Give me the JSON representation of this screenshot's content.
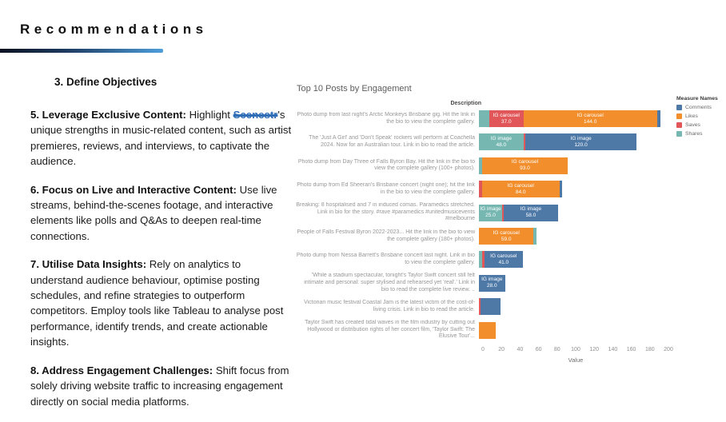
{
  "slide": {
    "title": "Recommendations"
  },
  "left_panel": {
    "heading": "3. Define Objectives",
    "paragraphs": [
      {
        "lead": "5. Leverage Exclusive Content:",
        "before_redacted": " Highlight ",
        "redacted": "Scenestr",
        "after_redacted": "'s unique strengths in music-related content, such as artist premieres, reviews, and interviews, to captivate the audience."
      },
      {
        "lead": "6. Focus on Live and Interactive Content:",
        "text": " Use live streams, behind-the-scenes footage, and interactive elements like polls and Q&As to deepen real-time connections."
      },
      {
        "lead": "7. Utilise Data Insights:",
        "text": " Rely on analytics to understand audience behaviour, optimise posting schedules, and refine strategies to outperform competitors. Employ tools like Tableau to analyse post performance, identify trends, and create actionable insights."
      },
      {
        "lead": "8. Address Engagement Challenges:",
        "text": " Shift focus from solely driving website traffic to increasing engagement directly on social media platforms."
      }
    ]
  },
  "chart_data": {
    "type": "bar",
    "orientation": "horizontal",
    "title": "Top 10 Posts by Engagement",
    "column_header": "Description",
    "xlabel": "Value",
    "x_ticks": [
      0,
      20,
      40,
      60,
      80,
      100,
      120,
      140,
      160,
      180,
      200
    ],
    "xlim": [
      0,
      210
    ],
    "grid": false,
    "legend": {
      "title": "Measure Names",
      "position": "top-right",
      "entries": [
        {
          "label": "Comments",
          "color": "#4e79a7"
        },
        {
          "label": "Likes",
          "color": "#f28e2b"
        },
        {
          "label": "Saves",
          "color": "#e15759"
        },
        {
          "label": "Shares",
          "color": "#76b7b2"
        }
      ]
    },
    "rows": [
      {
        "description": "Photo dump from last night's Arctic Monkeys Brisbane gig. Hit the link in the bio to view the complete gallery.",
        "segments": [
          {
            "measure": "Shares",
            "value": 11
          },
          {
            "measure": "Saves",
            "value": 37,
            "label": "IG carousel",
            "value_label": "37.0"
          },
          {
            "measure": "Likes",
            "value": 144,
            "label": "IG carousel",
            "value_label": "144.0"
          },
          {
            "measure": "Comments",
            "value": 4
          }
        ]
      },
      {
        "description": "The 'Just A Girl' and 'Don't Speak' rockers will perform at Coachella 2024. Now for an Australian tour. Link in bio to read the article.",
        "segments": [
          {
            "measure": "Shares",
            "value": 48,
            "label": "IG image",
            "value_label": "48.0"
          },
          {
            "measure": "Saves",
            "value": 2
          },
          {
            "measure": "Comments",
            "value": 120,
            "label": "IG image",
            "value_label": "120.0"
          }
        ]
      },
      {
        "description": "Photo dump from Day Three of Falls Byron Bay. Hit the link in the bio to view the complete gallery (100+ photos).",
        "segments": [
          {
            "measure": "Shares",
            "value": 3
          },
          {
            "measure": "Likes",
            "value": 93,
            "label": "IG carousel",
            "value_label": "93.0"
          }
        ]
      },
      {
        "description": "Photo dump from Ed Sheeran's Brisbane concert (night one); hit the link in the bio to view the complete gallery.",
        "segments": [
          {
            "measure": "Saves",
            "value": 3
          },
          {
            "measure": "Likes",
            "value": 84,
            "label": "IG carousel",
            "value_label": "84.0"
          },
          {
            "measure": "Comments",
            "value": 3
          }
        ]
      },
      {
        "description": "Breaking: 8 hospitalised and 7 in induced comas. Paramedics stretched. Link in bio for the story. #rave #paramedics #unitedmusicevents #melbourne",
        "segments": [
          {
            "measure": "Shares",
            "value": 25,
            "label": "IG image",
            "value_label": "25.0"
          },
          {
            "measure": "Saves",
            "value": 2
          },
          {
            "measure": "Comments",
            "value": 58,
            "label": "IG image",
            "value_label": "58.0"
          }
        ]
      },
      {
        "description": "People of Falls Festival Byron 2022-2023... Hit the link in the bio to view the complete gallery (180+ photos).",
        "segments": [
          {
            "measure": "Likes",
            "value": 59,
            "label": "IG carousel",
            "value_label": "59.0"
          },
          {
            "measure": "Shares",
            "value": 3
          }
        ]
      },
      {
        "description": "Photo dump from Nessa Barrett's Brisbane concert last night. Link in bio to view the complete gallery.",
        "segments": [
          {
            "measure": "Shares",
            "value": 3
          },
          {
            "measure": "Saves",
            "value": 3
          },
          {
            "measure": "Comments",
            "value": 41,
            "label": "IG carousel",
            "value_label": "41.0"
          }
        ]
      },
      {
        "description": "'While a stadium spectacular, tonight's Taylor Swift concert still felt intimate and personal: super stylised and rehearsed yet 'real'.' Link in bio to read the complete live review. ..",
        "segments": [
          {
            "measure": "Comments",
            "value": 28,
            "label": "IG image",
            "value_label": "28.0"
          }
        ]
      },
      {
        "description": "Victorian music festival Coastal Jam is the latest victim of the cost-of-living crisis. Link in bio to read the article.",
        "segments": [
          {
            "measure": "Saves",
            "value": 2
          },
          {
            "measure": "Comments",
            "value": 21
          }
        ]
      },
      {
        "description": "Taylor Swift has created tidal waves in the film industry by cutting out Hollywood or distribution rights of her concert film, 'Taylor Swift: The Elusive Tour'...",
        "segments": [
          {
            "measure": "Likes",
            "value": 18
          }
        ]
      }
    ]
  }
}
